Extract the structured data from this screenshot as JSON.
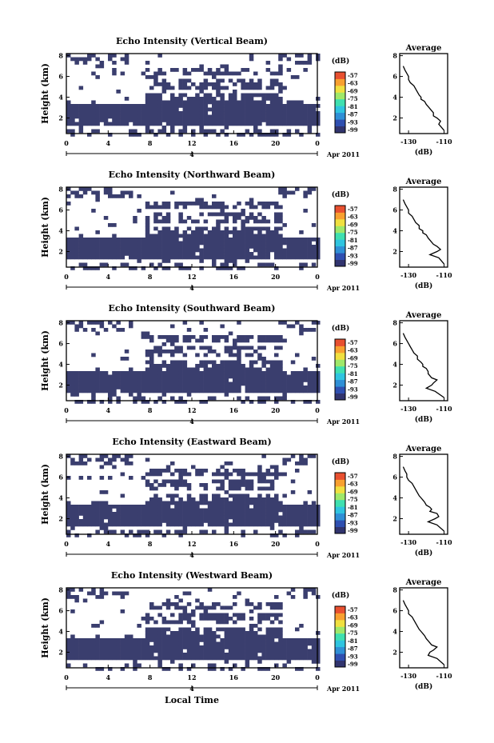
{
  "figure": {
    "date_label": "Apr 2011",
    "date_tick": "4",
    "xlabel": "Local Time",
    "colorbar_unit": "(dB)",
    "colorbar_labels": [
      "-57",
      "-63",
      "-69",
      "-75",
      "-81",
      "-87",
      "-93",
      "-99"
    ],
    "colorbar_colors": [
      "#31346e",
      "#2f4fb0",
      "#2f8fd6",
      "#2fc4e0",
      "#3fe0b0",
      "#9fe86a",
      "#f0e040",
      "#f8a030",
      "#e85030"
    ],
    "highlight_color": "#3a3e6e",
    "profile_title": "Average",
    "profile_xlabel": "(dB)",
    "ylabel": "Height (km)"
  },
  "chart_data": [
    {
      "type": "heatmap",
      "title": "Echo Intensity (Vertical Beam)",
      "x_ticks": [
        "0",
        "4",
        "8",
        "12",
        "16",
        "20",
        "0"
      ],
      "y_ticks": [
        "2",
        "4",
        "6",
        "8"
      ],
      "xlim": [
        0,
        24
      ],
      "ylim": [
        0.5,
        8.2
      ],
      "profile": {
        "type": "line",
        "title": "Average",
        "xlim": [
          -135,
          -108
        ],
        "ylim": [
          0.5,
          8.2
        ],
        "x_ticks": [
          "-130",
          "-110"
        ],
        "y_ticks": [
          "2",
          "4",
          "6",
          "8"
        ],
        "x": [
          -133,
          -132,
          -131,
          -130,
          -130,
          -129,
          -127,
          -126,
          -125,
          -124,
          -123,
          -123,
          -121,
          -120,
          -119,
          -118,
          -117,
          -116,
          -116,
          -114,
          -112,
          -113,
          -110
        ],
        "y": [
          7.0,
          6.6,
          6.3,
          6.0,
          5.7,
          5.4,
          5.1,
          4.8,
          4.5,
          4.2,
          4.0,
          3.8,
          3.6,
          3.3,
          3.1,
          2.9,
          2.7,
          2.5,
          2.2,
          2.0,
          1.7,
          1.4,
          0.8
        ]
      }
    },
    {
      "type": "heatmap",
      "title": "Echo Intensity (Northward Beam)",
      "x_ticks": [
        "0",
        "4",
        "8",
        "12",
        "16",
        "20",
        "0"
      ],
      "y_ticks": [
        "2",
        "4",
        "6",
        "8"
      ],
      "xlim": [
        0,
        24
      ],
      "ylim": [
        0.5,
        8.2
      ],
      "profile": {
        "type": "line",
        "title": "Average",
        "xlim": [
          -135,
          -108
        ],
        "ylim": [
          0.5,
          8.2
        ],
        "x": [
          -133,
          -132,
          -131,
          -130,
          -130,
          -128,
          -127,
          -126,
          -124,
          -124,
          -122,
          -122,
          -120,
          -119,
          -118,
          -117,
          -116,
          -114,
          -112,
          -114,
          -118,
          -113,
          -110
        ],
        "y": [
          7.0,
          6.6,
          6.3,
          6.0,
          5.7,
          5.4,
          5.1,
          4.8,
          4.5,
          4.2,
          4.0,
          3.8,
          3.6,
          3.3,
          3.1,
          2.9,
          2.7,
          2.5,
          2.2,
          2.0,
          1.7,
          1.4,
          0.8
        ]
      }
    },
    {
      "type": "heatmap",
      "title": "Echo Intensity (Southward Beam)",
      "x_ticks": [
        "0",
        "4",
        "8",
        "12",
        "16",
        "20",
        "0"
      ],
      "y_ticks": [
        "2",
        "4",
        "6",
        "8"
      ],
      "xlim": [
        0,
        24
      ],
      "ylim": [
        0.5,
        8.2
      ],
      "profile": {
        "type": "line",
        "title": "Average",
        "xlim": [
          -135,
          -108
        ],
        "ylim": [
          0.5,
          8.2
        ],
        "x": [
          -133,
          -132,
          -131,
          -130,
          -129,
          -128,
          -127,
          -125,
          -125,
          -123,
          -122,
          -122,
          -120,
          -119,
          -119,
          -118,
          -117,
          -114,
          -116,
          -117,
          -120,
          -115,
          -110
        ],
        "y": [
          7.0,
          6.6,
          6.3,
          6.0,
          5.7,
          5.4,
          5.1,
          4.8,
          4.5,
          4.2,
          4.0,
          3.8,
          3.6,
          3.3,
          3.1,
          2.9,
          2.7,
          2.5,
          2.2,
          2.0,
          1.7,
          1.4,
          0.8
        ]
      }
    },
    {
      "type": "heatmap",
      "title": "Echo Intensity (Eastward Beam)",
      "x_ticks": [
        "0",
        "4",
        "8",
        "12",
        "16",
        "20",
        "0"
      ],
      "y_ticks": [
        "2",
        "4",
        "6",
        "8"
      ],
      "xlim": [
        0,
        24
      ],
      "ylim": [
        0.5,
        8.2
      ],
      "profile": {
        "type": "line",
        "title": "Average",
        "xlim": [
          -135,
          -108
        ],
        "ylim": [
          0.5,
          8.2
        ],
        "x": [
          -133,
          -132,
          -131,
          -131,
          -130,
          -128,
          -127,
          -126,
          -125,
          -124,
          -123,
          -122,
          -121,
          -120,
          -118,
          -117,
          -118,
          -114,
          -113,
          -115,
          -119,
          -114,
          -110
        ],
        "y": [
          7.0,
          6.6,
          6.3,
          6.0,
          5.7,
          5.4,
          5.1,
          4.8,
          4.5,
          4.2,
          4.0,
          3.8,
          3.6,
          3.3,
          3.1,
          2.9,
          2.7,
          2.5,
          2.2,
          2.0,
          1.7,
          1.4,
          0.8
        ]
      }
    },
    {
      "type": "heatmap",
      "title": "Echo Intensity (Westward Beam)",
      "x_ticks": [
        "0",
        "4",
        "8",
        "12",
        "16",
        "20",
        "0"
      ],
      "y_ticks": [
        "2",
        "4",
        "6",
        "8"
      ],
      "xlim": [
        0,
        24
      ],
      "ylim": [
        0.5,
        8.2
      ],
      "profile": {
        "type": "line",
        "title": "Average",
        "xlim": [
          -135,
          -108
        ],
        "ylim": [
          0.5,
          8.2
        ],
        "x": [
          -133,
          -132,
          -131,
          -130,
          -130,
          -128,
          -127,
          -126,
          -125,
          -124,
          -123,
          -122,
          -121,
          -120,
          -119,
          -118,
          -117,
          -114,
          -116,
          -118,
          -119,
          -114,
          -110
        ],
        "y": [
          7.0,
          6.6,
          6.3,
          6.0,
          5.7,
          5.4,
          5.1,
          4.8,
          4.5,
          4.2,
          4.0,
          3.8,
          3.6,
          3.3,
          3.1,
          2.9,
          2.7,
          2.5,
          2.2,
          2.0,
          1.7,
          1.4,
          0.8
        ]
      }
    }
  ]
}
